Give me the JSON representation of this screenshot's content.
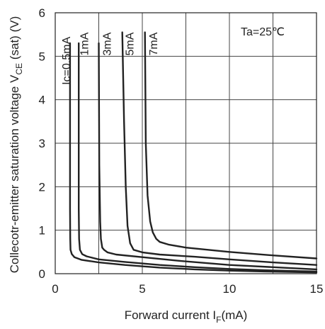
{
  "chart_data": {
    "type": "line",
    "title": "",
    "xlabel": "Forward current I",
    "xlabel_sub": "F",
    "xlabel_tail": "(mA)",
    "ylabel": "Collecotr-emitter saturation voltage V",
    "ylabel_sub": "CE",
    "ylabel_tail": " (sat) (V)",
    "xlim": [
      0,
      15
    ],
    "ylim": [
      0,
      6
    ],
    "x_ticks": [
      "0",
      "5",
      "10",
      "15"
    ],
    "x_tick_values": [
      0,
      5,
      10,
      15
    ],
    "y_ticks": [
      "0",
      "1",
      "2",
      "3",
      "4",
      "5",
      "6"
    ],
    "y_tick_values": [
      0,
      1,
      2,
      3,
      4,
      5,
      6
    ],
    "x_grid": [
      2.5,
      5,
      7.5,
      10,
      12.5
    ],
    "y_grid": [
      1,
      2,
      3,
      4,
      5
    ],
    "annotation": "Ta=25℃",
    "series": [
      {
        "name": "Ic=0.5mA",
        "label_at": [
          0.85,
          5.45
        ],
        "x": [
          0.85,
          0.85,
          0.86,
          0.88,
          0.95,
          1.1,
          1.5,
          2.5,
          4,
          6,
          8,
          10,
          12,
          15
        ],
        "y": [
          5.3,
          1.5,
          0.8,
          0.55,
          0.45,
          0.38,
          0.32,
          0.26,
          0.2,
          0.14,
          0.1,
          0.07,
          0.05,
          0.03
        ]
      },
      {
        "name": "1mA",
        "label_at": [
          1.9,
          5.55
        ],
        "x": [
          1.35,
          1.35,
          1.37,
          1.42,
          1.55,
          1.8,
          2.5,
          4,
          6,
          8,
          10,
          12,
          15
        ],
        "y": [
          5.3,
          1.5,
          0.8,
          0.55,
          0.45,
          0.4,
          0.33,
          0.27,
          0.2,
          0.15,
          0.11,
          0.08,
          0.05
        ]
      },
      {
        "name": "3mA",
        "label_at": [
          3.2,
          5.55
        ],
        "x": [
          2.5,
          2.53,
          2.58,
          2.62,
          2.7,
          2.8,
          3.0,
          3.5,
          5,
          7,
          10,
          12.5,
          15
        ],
        "y": [
          5.3,
          2.5,
          1.2,
          0.8,
          0.6,
          0.55,
          0.49,
          0.44,
          0.38,
          0.3,
          0.2,
          0.15,
          0.1
        ]
      },
      {
        "name": "5mA",
        "label_at": [
          4.5,
          5.55
        ],
        "x": [
          3.85,
          3.95,
          4.05,
          4.15,
          4.3,
          4.5,
          5.0,
          6.0,
          8,
          10,
          12.5,
          15
        ],
        "y": [
          5.55,
          3.5,
          2.0,
          1.1,
          0.7,
          0.55,
          0.49,
          0.44,
          0.39,
          0.33,
          0.26,
          0.2
        ]
      },
      {
        "name": "7mA",
        "label_at": [
          5.85,
          5.55
        ],
        "x": [
          5.15,
          5.2,
          5.3,
          5.45,
          5.6,
          5.8,
          6.0,
          6.5,
          7.5,
          10,
          12.5,
          15
        ],
        "y": [
          5.55,
          3.0,
          1.8,
          1.2,
          0.95,
          0.8,
          0.73,
          0.67,
          0.6,
          0.5,
          0.42,
          0.35
        ]
      }
    ]
  }
}
